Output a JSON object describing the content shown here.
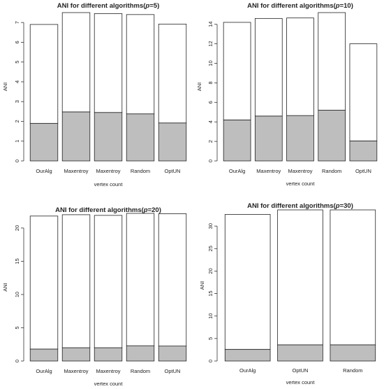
{
  "chart_data": [
    {
      "type": "bar",
      "stacked": true,
      "title_prefix": "ANI for different algorithms(",
      "title_italic": "p",
      "title_suffix": "=5)",
      "xlabel": "vertex count",
      "ylabel": "ANI",
      "categories": [
        "OurAlg",
        "Maxentroy",
        "Maxentroy",
        "Random",
        "OptUN"
      ],
      "yticks": [
        0,
        1,
        2,
        3,
        4,
        5,
        6,
        7
      ],
      "ylim": [
        0,
        7.5
      ],
      "series": [
        {
          "values": [
            1.9,
            2.48,
            2.45,
            2.38,
            1.92
          ],
          "color": "#bebebe"
        },
        {
          "values": [
            5.0,
            5.02,
            5.0,
            5.02,
            5.0
          ],
          "color": "#ffffff"
        }
      ],
      "totals": [
        6.9,
        7.5,
        7.45,
        7.4,
        6.92
      ],
      "grid": false
    },
    {
      "type": "bar",
      "stacked": true,
      "title_prefix": "ANI for different algorithms(",
      "title_italic": "p",
      "title_suffix": "=10)",
      "xlabel": "vertex count",
      "ylabel": "ANI",
      "categories": [
        "OurAlg",
        "Maxentroy",
        "Maxentroy",
        "Random",
        "OptUN"
      ],
      "yticks": [
        0,
        2,
        4,
        6,
        8,
        10,
        12,
        14
      ],
      "ylim": [
        0,
        15.2
      ],
      "series": [
        {
          "values": [
            4.2,
            4.6,
            4.65,
            5.2,
            2.05
          ],
          "color": "#bebebe"
        },
        {
          "values": [
            10.0,
            10.0,
            10.0,
            10.0,
            9.95
          ],
          "color": "#ffffff"
        }
      ],
      "totals": [
        14.2,
        14.6,
        14.65,
        15.2,
        12.0
      ],
      "grid": false
    },
    {
      "type": "bar",
      "stacked": true,
      "title_prefix": "ANI for different algorithms(",
      "title_italic": "p",
      "title_suffix": "=20)",
      "xlabel": "vertex count",
      "ylabel": "ANI",
      "categories": [
        "OurAlg",
        "Maxentroy",
        "Maxentroy",
        "Random",
        "OptUN"
      ],
      "yticks": [
        0,
        5,
        10,
        15,
        20
      ],
      "ylim": [
        0,
        22.2
      ],
      "series": [
        {
          "values": [
            1.8,
            2.0,
            2.0,
            2.3,
            2.25
          ],
          "color": "#bebebe"
        },
        {
          "values": [
            20.0,
            20.0,
            19.9,
            19.9,
            19.9
          ],
          "color": "#ffffff"
        }
      ],
      "totals": [
        21.8,
        22.0,
        21.9,
        22.2,
        22.15
      ],
      "grid": false
    },
    {
      "type": "bar",
      "stacked": true,
      "title_prefix": "ANI for different algorithms(",
      "title_italic": "p",
      "title_suffix": "=30)",
      "xlabel": "vertex count",
      "ylabel": "ANI",
      "categories": [
        "OurAlg",
        "OptUN",
        "Random"
      ],
      "yticks": [
        0,
        5,
        10,
        15,
        20,
        25,
        30
      ],
      "ylim": [
        0,
        33.6
      ],
      "series": [
        {
          "values": [
            2.6,
            3.6,
            3.6
          ],
          "color": "#bebebe"
        },
        {
          "values": [
            30.0,
            30.0,
            30.0
          ],
          "color": "#ffffff"
        }
      ],
      "totals": [
        32.6,
        33.6,
        33.6
      ],
      "grid": false
    }
  ]
}
